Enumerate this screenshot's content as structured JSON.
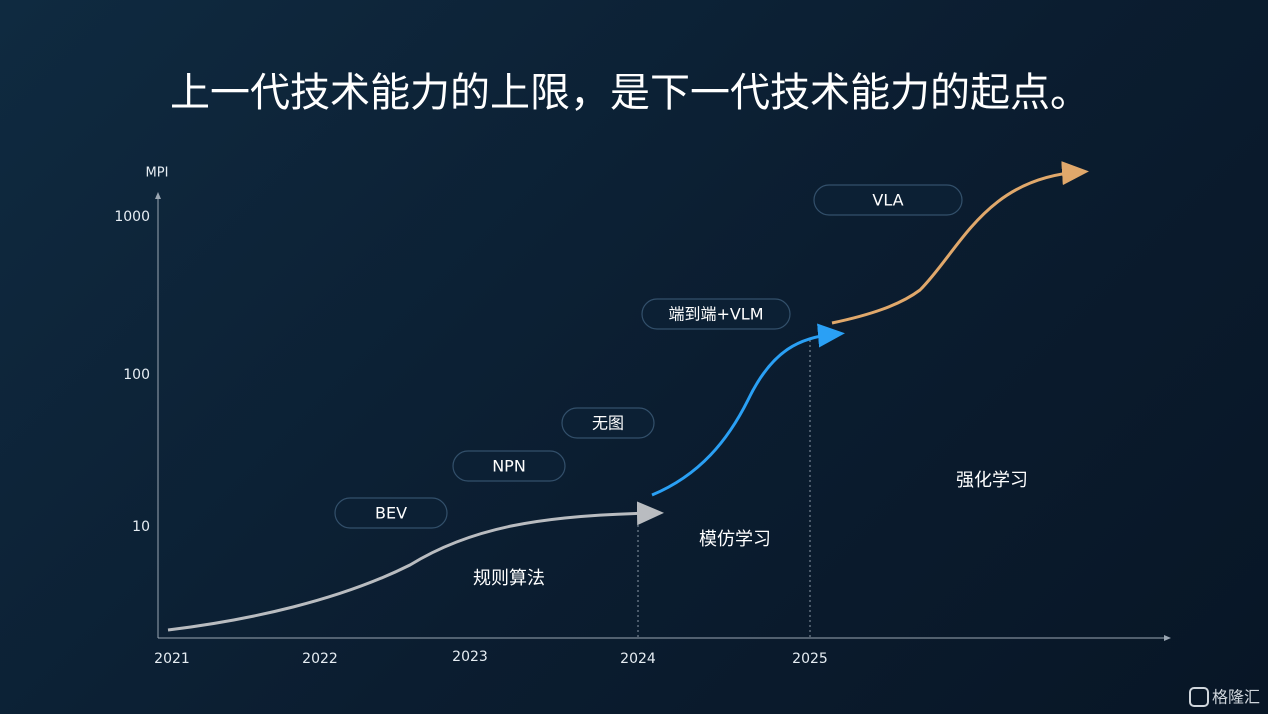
{
  "title": "上一代技术能力的上限，是下一代技术能力的起点。",
  "y_axis": {
    "label": "MPI",
    "ticks": [
      "1000",
      "100",
      "10"
    ]
  },
  "x_axis": {
    "ticks": [
      "2021",
      "2022",
      "2023",
      "2024",
      "2025"
    ]
  },
  "tags": [
    "BEV",
    "NPN",
    "无图",
    "端到端+VLM",
    "VLA"
  ],
  "phases": [
    "规则算法",
    "模仿学习",
    "强化学习"
  ],
  "watermark": "格隆汇"
}
